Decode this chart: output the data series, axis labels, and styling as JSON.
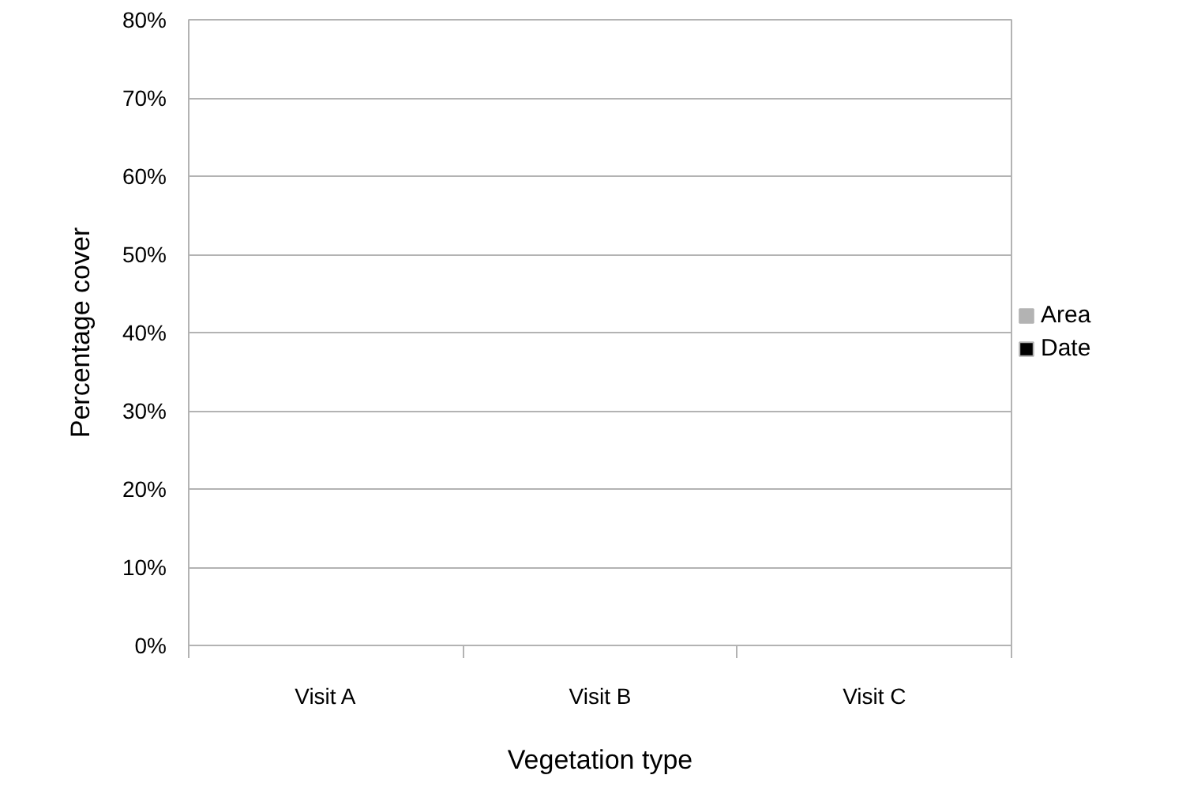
{
  "chart_data": {
    "type": "bar",
    "categories": [
      "Visit A",
      "Visit B",
      "Visit C"
    ],
    "series": [
      {
        "name": "Area",
        "color": "#b3b3b3",
        "values": [
          null,
          null,
          null
        ]
      },
      {
        "name": "Date",
        "color": "#000000",
        "values": [
          null,
          null,
          null
        ]
      }
    ],
    "xlabel": "Vegetation type",
    "ylabel": "Percentage cover",
    "ylim": [
      0,
      80
    ],
    "yticks": [
      {
        "value": 0,
        "label": "0%"
      },
      {
        "value": 10,
        "label": "10%"
      },
      {
        "value": 20,
        "label": "20%"
      },
      {
        "value": 30,
        "label": "30%"
      },
      {
        "value": 40,
        "label": "40%"
      },
      {
        "value": 50,
        "label": "50%"
      },
      {
        "value": 60,
        "label": "60%"
      },
      {
        "value": 70,
        "label": "70%"
      },
      {
        "value": 80,
        "label": "80%"
      }
    ],
    "grid": "y",
    "legend": "right"
  }
}
